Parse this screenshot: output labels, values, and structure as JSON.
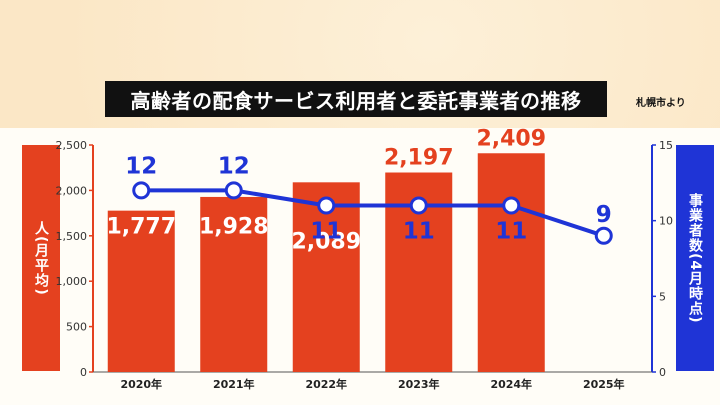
{
  "title": "高齢者の配食サービス利用者と委託事業者の推移",
  "source": "札幌市より",
  "colors": {
    "bar": "#e4411f",
    "line": "#1f34d6",
    "title_bg": "#111111"
  },
  "chart_data": {
    "type": "bar",
    "categories": [
      "2020年",
      "2021年",
      "2022年",
      "2023年",
      "2024年",
      "2025年"
    ],
    "series": [
      {
        "type": "bar",
        "axis": "left",
        "values": [
          1777,
          1928,
          2089,
          2197,
          2409,
          null
        ],
        "labels": [
          "1,777",
          "1,928",
          "2,089",
          "2,197",
          "2,409",
          ""
        ]
      },
      {
        "type": "line",
        "axis": "right",
        "values": [
          12,
          12,
          11,
          11,
          11,
          9
        ],
        "labels": [
          "12",
          "12",
          "11",
          "11",
          "11",
          "9"
        ]
      }
    ],
    "ylabel_left": "人(月平均)",
    "ylabel_right": "事業者数(4月時点)",
    "ylim_left": [
      0,
      2500
    ],
    "ylim_right": [
      0,
      15
    ],
    "yticks_left": [
      "0",
      "500",
      "1,000",
      "1,500",
      "2,000",
      "2,500"
    ],
    "yticks_right": [
      "0",
      "5",
      "10",
      "15"
    ],
    "grid": false
  }
}
